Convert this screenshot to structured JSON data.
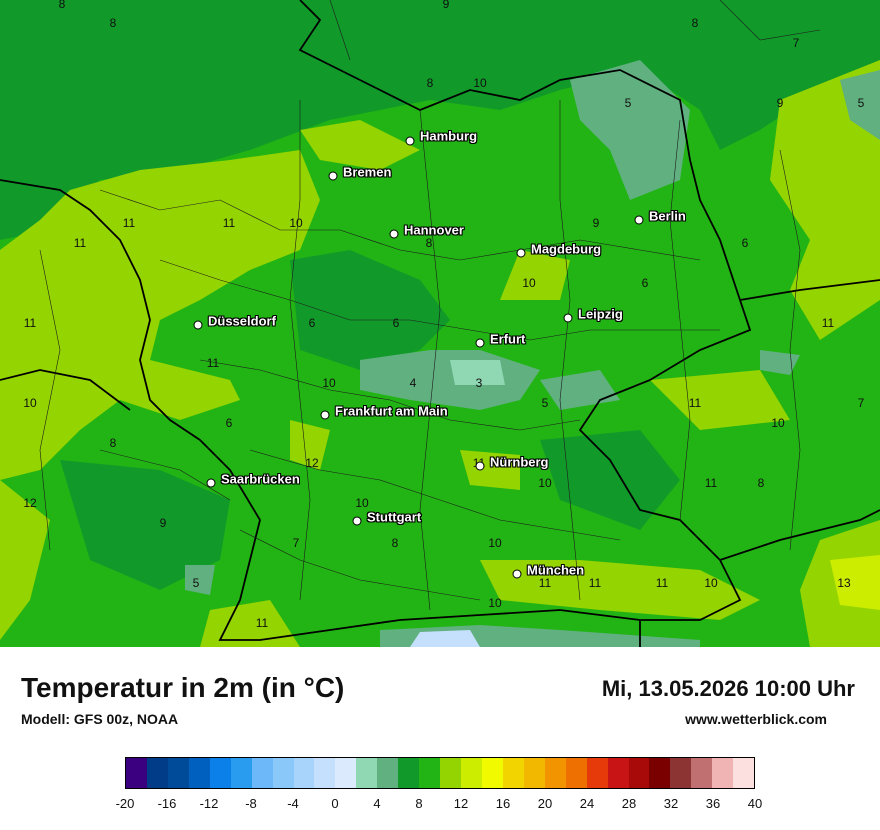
{
  "title": "Temperatur in 2m (in °C)",
  "model": "Modell: GFS 00z, NOAA",
  "datetime": "Mi, 13.05.2026 10:00 Uhr",
  "site": "www.wetterblick.com",
  "legend": {
    "ticks": [
      "-20",
      "-16",
      "-12",
      "-8",
      "-4",
      "0",
      "4",
      "8",
      "12",
      "16",
      "20",
      "24",
      "28",
      "32",
      "36",
      "40"
    ],
    "colors": [
      "#3a0080",
      "#003c88",
      "#004a9a",
      "#0060c0",
      "#0a80e8",
      "#2a9cf0",
      "#6cb8f8",
      "#8ac8fa",
      "#a8d4fc",
      "#c4e0fc",
      "#dceafe",
      "#90d8b4",
      "#60b080",
      "#119a2a",
      "#22b414",
      "#94d400",
      "#ccec00",
      "#f2fa00",
      "#f2d400",
      "#f2b800",
      "#f29400",
      "#ee7000",
      "#e63a0a",
      "#c81414",
      "#a80a0a",
      "#7a0000",
      "#8c3434",
      "#c07070",
      "#f0b4b4",
      "#fce0e0"
    ]
  },
  "cities": [
    {
      "name": "Hamburg"
    },
    {
      "name": "Bremen"
    },
    {
      "name": "Berlin"
    },
    {
      "name": "Hannover"
    },
    {
      "name": "Magdeburg"
    },
    {
      "name": "Düsseldorf"
    },
    {
      "name": "Leipzig"
    },
    {
      "name": "Erfurt"
    },
    {
      "name": "Frankfurt am Main"
    },
    {
      "name": "Nürnberg"
    },
    {
      "name": "Saarbrücken"
    },
    {
      "name": "Stuttgart"
    },
    {
      "name": "München"
    }
  ],
  "isolines": [
    "8",
    "8",
    "9",
    "8",
    "7",
    "10",
    "5",
    "9",
    "5",
    "8",
    "11",
    "11",
    "10",
    "11",
    "9",
    "6",
    "8",
    "10",
    "6",
    "11",
    "11",
    "11",
    "6",
    "6",
    "10",
    "4",
    "3",
    "5",
    "11",
    "7",
    "10",
    "8",
    "6",
    "12",
    "11",
    "11",
    "10",
    "10",
    "8",
    "12",
    "9",
    "10",
    "7",
    "8",
    "10",
    "11",
    "11",
    "11",
    "10",
    "13",
    "5",
    "10",
    "11"
  ]
}
